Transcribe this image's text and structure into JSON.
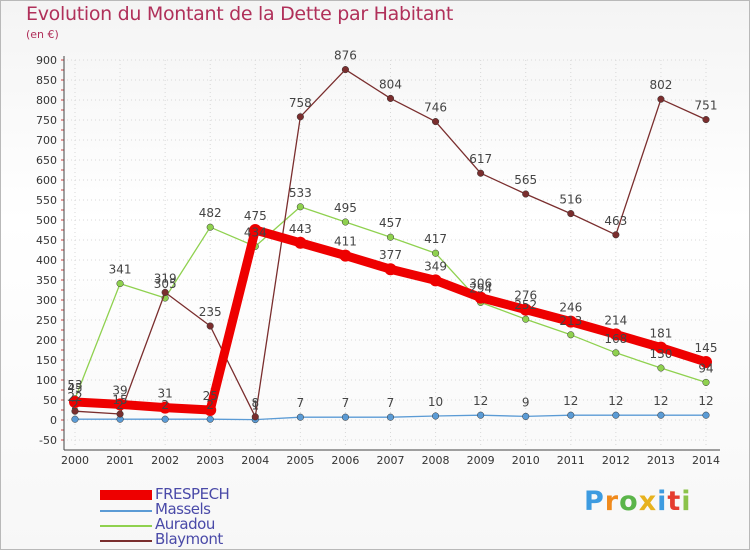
{
  "title": "Evolution du Montant de la Dette par Habitant",
  "unit": "(en €)",
  "logo": "Proxiti",
  "chart_data": {
    "type": "line",
    "categories": [
      "2000",
      "2001",
      "2002",
      "2003",
      "2004",
      "2005",
      "2006",
      "2007",
      "2008",
      "2009",
      "2010",
      "2011",
      "2012",
      "2013",
      "2014"
    ],
    "ylim": [
      -50,
      900
    ],
    "yticks": [
      -50,
      0,
      50,
      100,
      150,
      200,
      250,
      300,
      350,
      400,
      450,
      500,
      550,
      600,
      650,
      700,
      750,
      800,
      850,
      900
    ],
    "grid": true,
    "legend_position": "bottom-left",
    "series": [
      {
        "name": "FRESPECH",
        "color": "#ee0000",
        "values": [
          45,
          39,
          31,
          25,
          475,
          443,
          411,
          377,
          349,
          306,
          276,
          246,
          214,
          181,
          145
        ]
      },
      {
        "name": "Massels",
        "color": "#5b9bd5",
        "values": [
          2,
          2,
          2,
          2,
          1,
          7,
          7,
          7,
          10,
          12,
          9,
          12,
          12,
          12,
          12
        ]
      },
      {
        "name": "Auradou",
        "color": "#8fd14f",
        "values": [
          53,
          341,
          305,
          482,
          434,
          533,
          495,
          457,
          417,
          294,
          252,
          213,
          168,
          130,
          94
        ]
      },
      {
        "name": "Blaymont",
        "color": "#7a2e2e",
        "values": [
          22,
          15,
          319,
          235,
          8,
          758,
          876,
          804,
          746,
          617,
          565,
          516,
          463,
          802,
          751
        ]
      }
    ]
  }
}
